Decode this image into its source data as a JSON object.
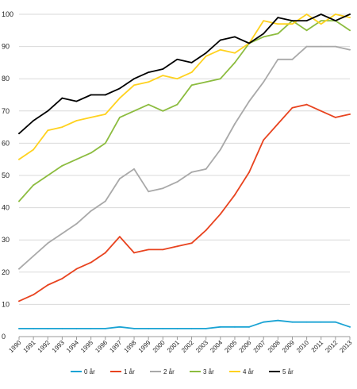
{
  "chart_data": {
    "type": "line",
    "title": "",
    "xlabel": "",
    "ylabel": "",
    "ylim": [
      0,
      100
    ],
    "yticks": [
      0,
      10,
      20,
      30,
      40,
      50,
      60,
      70,
      80,
      90,
      100
    ],
    "grid": "horizontal",
    "legend_position": "bottom",
    "categories": [
      "1990",
      "1991",
      "1992",
      "1993",
      "1994",
      "1995",
      "1996",
      "1997",
      "1998",
      "1999",
      "2000",
      "2001",
      "2002",
      "2003",
      "2004",
      "2005",
      "2006",
      "2007",
      "2008",
      "2009",
      "2010",
      "2011",
      "2012",
      "2013"
    ],
    "series": [
      {
        "name": "0 år",
        "color": "#1aa3d4",
        "values": [
          2.5,
          2.5,
          2.5,
          2.5,
          2.5,
          2.5,
          2.5,
          3,
          2.5,
          2.5,
          2.5,
          2.5,
          2.5,
          2.5,
          3,
          3,
          3,
          4.5,
          5,
          4.5,
          4.5,
          4.5,
          4.5,
          3
        ]
      },
      {
        "name": "1 år",
        "color": "#e8431f",
        "values": [
          11,
          13,
          16,
          18,
          21,
          23,
          26,
          31,
          26,
          27,
          27,
          28,
          29,
          33,
          38,
          44,
          51,
          61,
          66,
          71,
          72,
          70,
          68,
          69
        ]
      },
      {
        "name": "2 år",
        "color": "#a9a9a9",
        "values": [
          21,
          25,
          29,
          32,
          35,
          39,
          42,
          49,
          52,
          45,
          46,
          48,
          51,
          52,
          58,
          66,
          73,
          79,
          86,
          86,
          90,
          90,
          90,
          89
        ]
      },
      {
        "name": "3 år",
        "color": "#8cbc3f",
        "values": [
          42,
          47,
          50,
          53,
          55,
          57,
          60,
          68,
          70,
          72,
          70,
          72,
          78,
          79,
          80,
          85,
          91,
          93,
          94,
          98,
          95,
          98,
          98,
          95
        ]
      },
      {
        "name": "4 år",
        "color": "#ffd21f",
        "values": [
          55,
          58,
          64,
          65,
          67,
          68,
          69,
          74,
          78,
          79,
          81,
          80,
          82,
          87,
          89,
          88,
          91,
          98,
          97,
          97,
          100,
          97,
          100,
          99
        ]
      },
      {
        "name": "5 år",
        "color": "#000000",
        "values": [
          63,
          67,
          70,
          74,
          73,
          75,
          75,
          77,
          80,
          82,
          83,
          86,
          85,
          88,
          92,
          93,
          91,
          94,
          99,
          98,
          98,
          100,
          98,
          100
        ]
      }
    ]
  }
}
